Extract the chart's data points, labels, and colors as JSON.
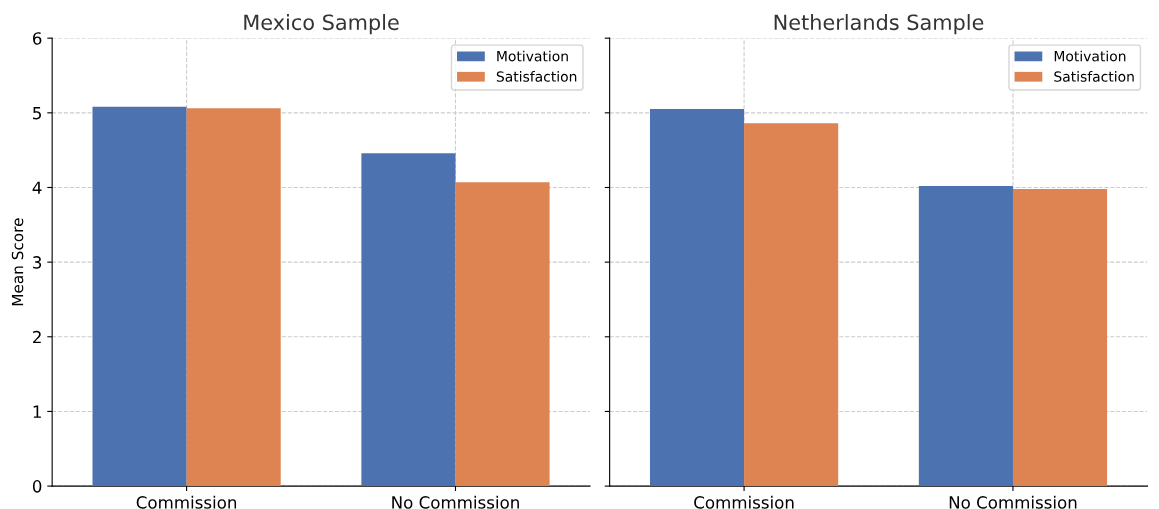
{
  "chart_data": [
    {
      "type": "bar",
      "title": "Mexico Sample",
      "ylabel": "Mean Score",
      "categories": [
        "Commission",
        "No Commission"
      ],
      "series": [
        {
          "name": "Motivation",
          "color": "#4c72b0",
          "values": [
            5.08,
            4.46
          ]
        },
        {
          "name": "Satisfaction",
          "color": "#dd8452",
          "values": [
            5.06,
            4.07
          ]
        }
      ],
      "ylim": [
        0,
        6
      ],
      "yticks": [
        0,
        1,
        2,
        3,
        4,
        5,
        6
      ],
      "grid": true,
      "legend": "top right"
    },
    {
      "type": "bar",
      "title": "Netherlands Sample",
      "categories": [
        "Commission",
        "No Commission"
      ],
      "series": [
        {
          "name": "Motivation",
          "color": "#4c72b0",
          "values": [
            5.05,
            4.02
          ]
        },
        {
          "name": "Satisfaction",
          "color": "#dd8452",
          "values": [
            4.86,
            3.98
          ]
        }
      ],
      "ylim": [
        0,
        6
      ],
      "yticks": [
        0,
        1,
        2,
        3,
        4,
        5,
        6
      ],
      "grid": true,
      "legend": "top right",
      "tick_labels": "x"
    }
  ]
}
